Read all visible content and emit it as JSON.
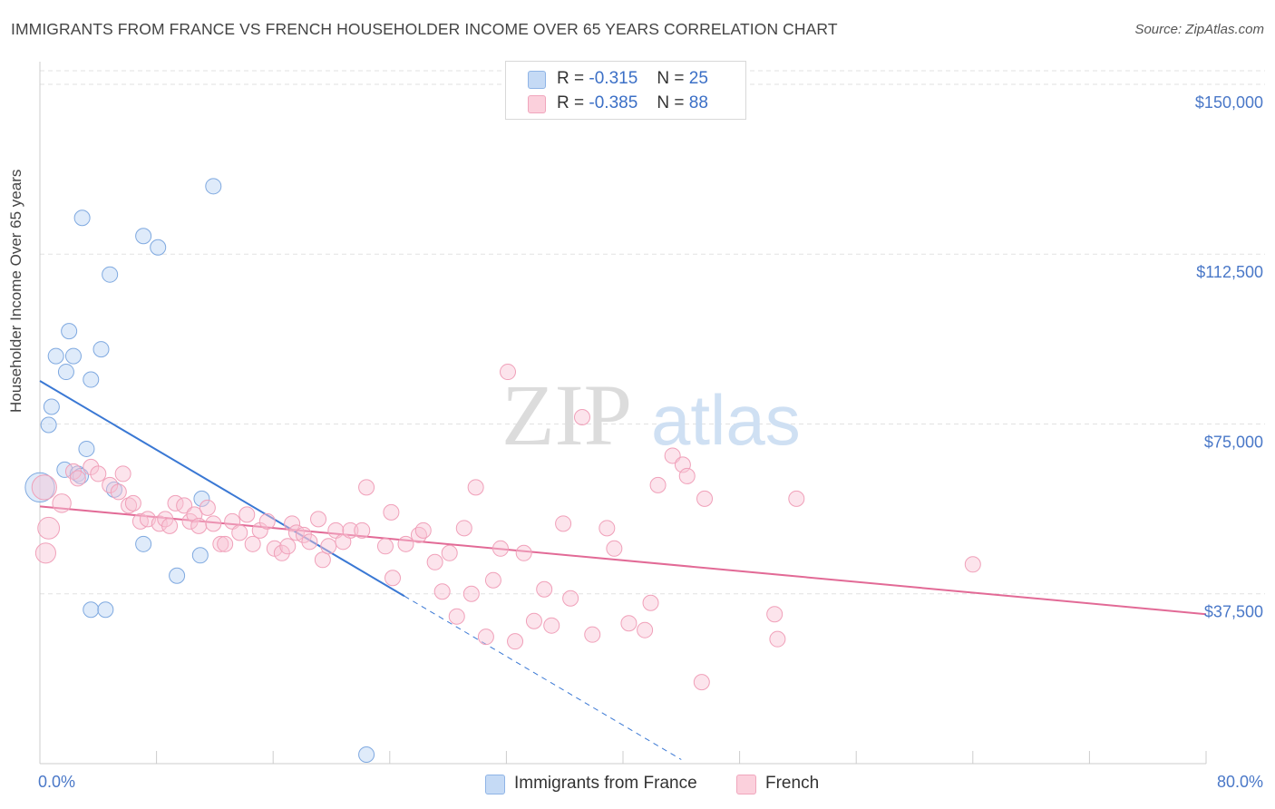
{
  "header": {
    "title": "IMMIGRANTS FROM FRANCE VS FRENCH HOUSEHOLDER INCOME OVER 65 YEARS CORRELATION CHART",
    "source": "Source: ZipAtlas.com"
  },
  "legend": {
    "r_label": "R =",
    "n_label": "N =",
    "rows": [
      {
        "r": "-0.315",
        "n": "25",
        "color": "#a9c8ef"
      },
      {
        "r": "-0.385",
        "n": "88",
        "color": "#f6b8cb"
      }
    ]
  },
  "bottom_legend": [
    "Immigrants from France",
    "French"
  ],
  "watermark": {
    "zip": "ZIP",
    "atlas": "atlas"
  },
  "colors": {
    "blue_line": "#3a78d4",
    "pink_line": "#e26a96",
    "blue_fill": "#a9c8ef",
    "pink_fill": "#f6b8cb"
  },
  "chart_data": {
    "type": "scatter",
    "title": "IMMIGRANTS FROM FRANCE VS FRENCH HOUSEHOLDER INCOME OVER 65 YEARS CORRELATION CHART",
    "xlabel": "",
    "ylabel": "Householder Income Over 65 years",
    "xlim": [
      0,
      80
    ],
    "ylim": [
      0,
      155000
    ],
    "x_tick_labels": [
      "0.0%",
      "80.0%"
    ],
    "y_ticks": [
      {
        "value": 37500,
        "label": "$37,500"
      },
      {
        "value": 75000,
        "label": "$75,000"
      },
      {
        "value": 112500,
        "label": "$112,500"
      },
      {
        "value": 150000,
        "label": "$150,000"
      }
    ],
    "series": [
      {
        "name": "Immigrants from France",
        "color": "#a9c8ef",
        "trend": {
          "x0": 0,
          "y0": 84500,
          "x1": 25,
          "y1": 37000,
          "dash_to_x": 44
        },
        "points": [
          [
            0.0,
            61000,
            1.9
          ],
          [
            0.6,
            74800,
            1
          ],
          [
            0.8,
            78800,
            1
          ],
          [
            1.1,
            90000,
            1
          ],
          [
            1.7,
            64900,
            1
          ],
          [
            1.8,
            86500,
            1
          ],
          [
            2.0,
            95500,
            1
          ],
          [
            2.3,
            90000,
            1
          ],
          [
            2.6,
            64000,
            1
          ],
          [
            2.8,
            63500,
            1
          ],
          [
            3.2,
            69500,
            1
          ],
          [
            2.9,
            120500,
            1
          ],
          [
            3.5,
            84800,
            1
          ],
          [
            4.2,
            91500,
            1
          ],
          [
            4.8,
            108000,
            1
          ],
          [
            5.1,
            60500,
            1
          ],
          [
            7.1,
            116500,
            1
          ],
          [
            8.1,
            114000,
            1
          ],
          [
            11.9,
            127500,
            1
          ],
          [
            11.1,
            58500,
            1
          ],
          [
            7.1,
            48500,
            1
          ],
          [
            9.4,
            41500,
            1
          ],
          [
            11.0,
            46000,
            1
          ],
          [
            3.5,
            34000,
            1
          ],
          [
            4.5,
            34000,
            1
          ],
          [
            22.4,
            2000,
            1
          ]
        ]
      },
      {
        "name": "French",
        "color": "#f6b8cb",
        "trend": {
          "x0": 0,
          "y0": 56800,
          "x1": 80,
          "y1": 33000
        },
        "points": [
          [
            0.3,
            61000,
            1.6
          ],
          [
            0.6,
            52000,
            1.4
          ],
          [
            0.4,
            46500,
            1.3
          ],
          [
            1.5,
            57500,
            1.2
          ],
          [
            2.3,
            64500,
            1
          ],
          [
            2.6,
            63000,
            1
          ],
          [
            3.5,
            65500,
            1
          ],
          [
            4.0,
            64000,
            1
          ],
          [
            4.8,
            61500,
            1
          ],
          [
            5.4,
            60000,
            1
          ],
          [
            5.7,
            64000,
            1
          ],
          [
            6.1,
            57000,
            1
          ],
          [
            6.4,
            57500,
            1
          ],
          [
            6.9,
            53500,
            1
          ],
          [
            7.4,
            54000,
            1
          ],
          [
            8.2,
            53000,
            1
          ],
          [
            8.6,
            54000,
            1
          ],
          [
            8.9,
            52500,
            1
          ],
          [
            9.3,
            57500,
            1
          ],
          [
            9.9,
            57000,
            1
          ],
          [
            10.3,
            53500,
            1
          ],
          [
            10.6,
            55000,
            1
          ],
          [
            10.9,
            52500,
            1
          ],
          [
            11.5,
            56500,
            1
          ],
          [
            11.9,
            53000,
            1
          ],
          [
            12.4,
            48500,
            1
          ],
          [
            12.7,
            48500,
            1
          ],
          [
            13.2,
            53500,
            1
          ],
          [
            13.7,
            51000,
            1
          ],
          [
            14.2,
            55000,
            1
          ],
          [
            14.6,
            48500,
            1
          ],
          [
            15.1,
            51500,
            1
          ],
          [
            15.6,
            53500,
            1
          ],
          [
            16.1,
            47500,
            1
          ],
          [
            16.6,
            46500,
            1
          ],
          [
            17.0,
            48000,
            1
          ],
          [
            17.3,
            53000,
            1
          ],
          [
            17.6,
            51000,
            1
          ],
          [
            18.1,
            50500,
            1
          ],
          [
            18.5,
            49000,
            1
          ],
          [
            19.1,
            54000,
            1
          ],
          [
            19.4,
            45000,
            1
          ],
          [
            19.8,
            48000,
            1
          ],
          [
            20.3,
            51500,
            1
          ],
          [
            20.8,
            49000,
            1
          ],
          [
            21.3,
            51500,
            1
          ],
          [
            22.1,
            51500,
            1
          ],
          [
            22.4,
            61000,
            1
          ],
          [
            23.7,
            48000,
            1
          ],
          [
            24.1,
            55500,
            1
          ],
          [
            24.2,
            41000,
            1
          ],
          [
            25.1,
            48500,
            1
          ],
          [
            26.0,
            50500,
            1
          ],
          [
            26.3,
            51500,
            1
          ],
          [
            27.1,
            44500,
            1
          ],
          [
            27.6,
            38000,
            1
          ],
          [
            28.1,
            46500,
            1
          ],
          [
            28.6,
            32500,
            1
          ],
          [
            29.1,
            52000,
            1
          ],
          [
            29.6,
            37500,
            1
          ],
          [
            29.9,
            61000,
            1
          ],
          [
            30.6,
            28000,
            1
          ],
          [
            31.1,
            40500,
            1
          ],
          [
            31.6,
            47500,
            1
          ],
          [
            32.1,
            86500,
            1
          ],
          [
            32.6,
            27000,
            1
          ],
          [
            33.2,
            46500,
            1
          ],
          [
            33.9,
            31500,
            1
          ],
          [
            34.6,
            38500,
            1
          ],
          [
            35.1,
            30500,
            1
          ],
          [
            35.9,
            53000,
            1
          ],
          [
            36.4,
            36500,
            1
          ],
          [
            37.2,
            76500,
            1
          ],
          [
            37.9,
            28500,
            1
          ],
          [
            38.9,
            52000,
            1
          ],
          [
            39.4,
            47500,
            1
          ],
          [
            40.4,
            31000,
            1
          ],
          [
            41.5,
            29500,
            1
          ],
          [
            41.9,
            35500,
            1
          ],
          [
            42.4,
            61500,
            1
          ],
          [
            43.4,
            68000,
            1
          ],
          [
            44.1,
            66000,
            1
          ],
          [
            44.4,
            63500,
            1
          ],
          [
            45.4,
            18000,
            1
          ],
          [
            45.6,
            58500,
            1
          ],
          [
            50.4,
            33000,
            1
          ],
          [
            50.6,
            27500,
            1
          ],
          [
            51.9,
            58500,
            1
          ],
          [
            64.0,
            44000,
            1
          ]
        ]
      }
    ]
  }
}
